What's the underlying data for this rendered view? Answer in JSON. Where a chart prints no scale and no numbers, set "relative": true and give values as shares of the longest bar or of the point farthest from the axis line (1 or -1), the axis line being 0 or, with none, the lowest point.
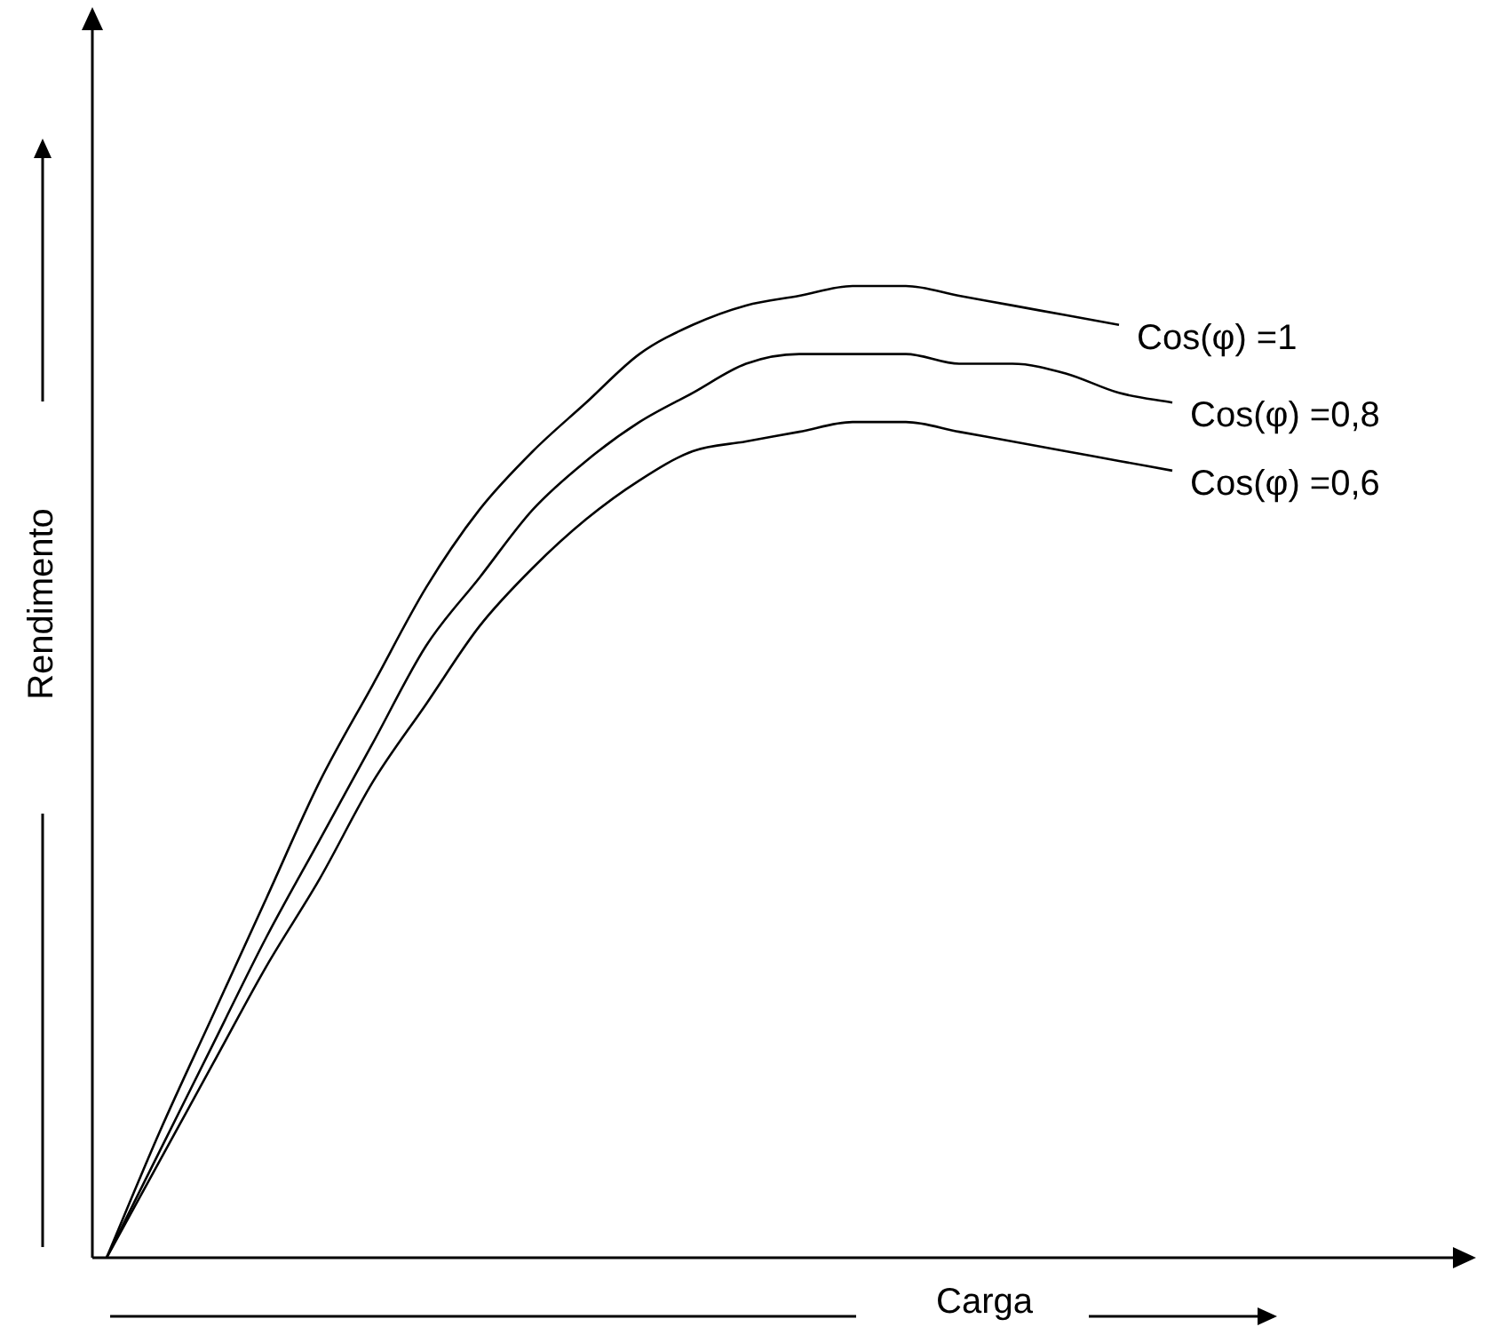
{
  "chart_data": {
    "type": "line",
    "xlabel": "Carga",
    "ylabel": "Rendimento",
    "relative": true,
    "legend": false,
    "marker": "none",
    "line_style": "solid",
    "categories": [
      null,
      null,
      null,
      null,
      null,
      null,
      null,
      null,
      null,
      null,
      null,
      null,
      null,
      null,
      null,
      null,
      null,
      null,
      null,
      null,
      null
    ],
    "series": [
      {
        "name": "Cos(φ) =1",
        "color": "#000000",
        "values": [
          0,
          0.13,
          0.25,
          0.37,
          0.49,
          0.59,
          0.69,
          0.77,
          0.83,
          0.88,
          0.93,
          0.96,
          0.98,
          0.99,
          1,
          1,
          0.99,
          0.98,
          0.97,
          0.96,
          null
        ]
      },
      {
        "name": "Cos(φ) =0,8",
        "color": "#000000",
        "values": [
          0,
          0.11,
          0.22,
          0.33,
          0.43,
          0.53,
          0.63,
          0.7,
          0.77,
          0.82,
          0.86,
          0.89,
          0.92,
          0.93,
          0.93,
          0.93,
          0.92,
          0.92,
          0.91,
          0.89,
          0.88
        ]
      },
      {
        "name": "Cos(φ) =0,6",
        "color": "#000000",
        "values": [
          0,
          0.1,
          0.2,
          0.3,
          0.39,
          0.49,
          0.57,
          0.65,
          0.71,
          0.76,
          0.8,
          0.83,
          0.84,
          0.85,
          0.86,
          0.86,
          0.85,
          0.84,
          0.83,
          0.82,
          0.81
        ]
      }
    ]
  }
}
